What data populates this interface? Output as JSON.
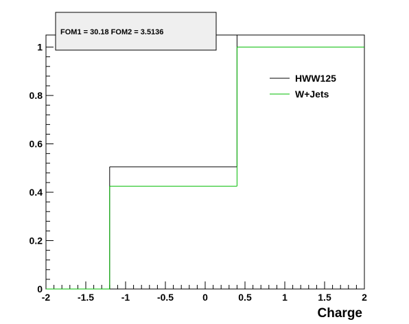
{
  "chart_data": {
    "type": "line",
    "step": true,
    "title": "",
    "annotation": "FOM1 = 30.18 FOM2 = 3.5136",
    "xlabel": "Charge",
    "ylabel": "",
    "xlim": [
      -2,
      2
    ],
    "ylim": [
      0,
      1.05
    ],
    "x_ticks": [
      "-2",
      "-1.5",
      "-1",
      "-0.5",
      "0",
      "0.5",
      "1",
      "1.5",
      "2"
    ],
    "y_ticks": [
      "0",
      "0.2",
      "0.4",
      "0.6",
      "0.8",
      "1"
    ],
    "bin_edges": [
      -2,
      -1.2,
      0.4,
      2
    ],
    "grid": false,
    "legend_position": "top-right",
    "series": [
      {
        "name": "HWW125",
        "color": "#000000",
        "values": [
          0,
          0.505,
          1.05
        ]
      },
      {
        "name": "W+Jets",
        "color": "#00bb00",
        "values": [
          0,
          0.425,
          1.0
        ]
      }
    ]
  }
}
